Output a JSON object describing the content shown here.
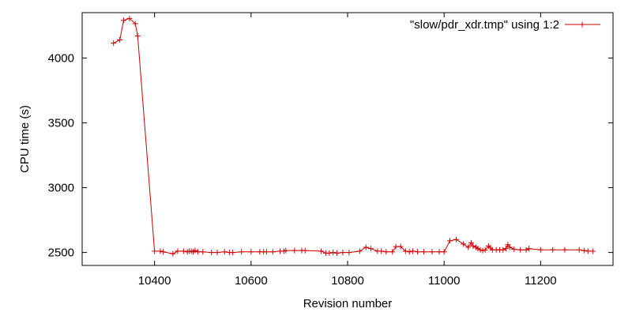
{
  "chart_data": {
    "type": "line",
    "title": "",
    "xlabel": "Revision number",
    "ylabel": "CPU time (s)",
    "xlim": [
      10250,
      11350
    ],
    "ylim": [
      2400,
      4350
    ],
    "x_ticks": [
      10400,
      10600,
      10800,
      11000,
      11200
    ],
    "y_ticks": [
      2500,
      3000,
      3500,
      4000
    ],
    "grid": false,
    "legend_position": "top-right",
    "line_color": "#cc0000",
    "marker": "plus",
    "series": [
      {
        "name": "\"slow/pdr_xdr.tmp\" using 1:2",
        "points": [
          [
            10315,
            4115
          ],
          [
            10328,
            4140
          ],
          [
            10336,
            4290
          ],
          [
            10348,
            4305
          ],
          [
            10360,
            4265
          ],
          [
            10365,
            4170
          ],
          [
            10400,
            2510
          ],
          [
            10412,
            2510
          ],
          [
            10418,
            2505
          ],
          [
            10438,
            2490
          ],
          [
            10448,
            2510
          ],
          [
            10460,
            2510
          ],
          [
            10468,
            2505
          ],
          [
            10472,
            2510
          ],
          [
            10476,
            2510
          ],
          [
            10480,
            2505
          ],
          [
            10484,
            2515
          ],
          [
            10490,
            2505
          ],
          [
            10500,
            2505
          ],
          [
            10518,
            2500
          ],
          [
            10530,
            2500
          ],
          [
            10545,
            2505
          ],
          [
            10555,
            2500
          ],
          [
            10562,
            2500
          ],
          [
            10580,
            2505
          ],
          [
            10600,
            2505
          ],
          [
            10618,
            2505
          ],
          [
            10626,
            2505
          ],
          [
            10632,
            2505
          ],
          [
            10645,
            2505
          ],
          [
            10660,
            2510
          ],
          [
            10668,
            2510
          ],
          [
            10672,
            2515
          ],
          [
            10690,
            2515
          ],
          [
            10705,
            2515
          ],
          [
            10712,
            2515
          ],
          [
            10745,
            2510
          ],
          [
            10755,
            2495
          ],
          [
            10762,
            2495
          ],
          [
            10770,
            2500
          ],
          [
            10778,
            2495
          ],
          [
            10790,
            2500
          ],
          [
            10803,
            2500
          ],
          [
            10825,
            2510
          ],
          [
            10838,
            2540
          ],
          [
            10848,
            2530
          ],
          [
            10862,
            2510
          ],
          [
            10870,
            2510
          ],
          [
            10880,
            2505
          ],
          [
            10893,
            2505
          ],
          [
            10900,
            2545
          ],
          [
            10910,
            2545
          ],
          [
            10920,
            2510
          ],
          [
            10928,
            2505
          ],
          [
            10935,
            2510
          ],
          [
            10945,
            2505
          ],
          [
            10958,
            2505
          ],
          [
            10975,
            2505
          ],
          [
            10990,
            2505
          ],
          [
            11000,
            2505
          ],
          [
            11012,
            2590
          ],
          [
            11025,
            2600
          ],
          [
            11040,
            2565
          ],
          [
            11050,
            2540
          ],
          [
            11056,
            2575
          ],
          [
            11060,
            2550
          ],
          [
            11066,
            2540
          ],
          [
            11070,
            2530
          ],
          [
            11075,
            2520
          ],
          [
            11080,
            2515
          ],
          [
            11085,
            2520
          ],
          [
            11092,
            2550
          ],
          [
            11096,
            2535
          ],
          [
            11100,
            2520
          ],
          [
            11108,
            2520
          ],
          [
            11115,
            2520
          ],
          [
            11122,
            2520
          ],
          [
            11128,
            2530
          ],
          [
            11132,
            2560
          ],
          [
            11136,
            2540
          ],
          [
            11145,
            2525
          ],
          [
            11158,
            2520
          ],
          [
            11170,
            2520
          ],
          [
            11176,
            2530
          ],
          [
            11200,
            2520
          ],
          [
            11225,
            2520
          ],
          [
            11250,
            2520
          ],
          [
            11280,
            2520
          ],
          [
            11290,
            2515
          ],
          [
            11298,
            2510
          ],
          [
            11308,
            2510
          ]
        ]
      }
    ]
  }
}
